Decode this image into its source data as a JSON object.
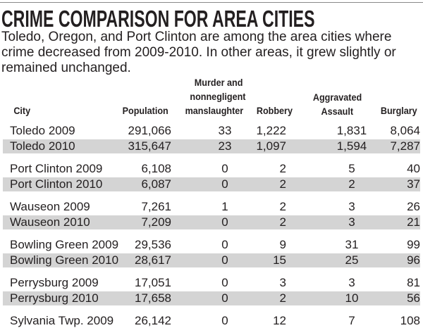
{
  "title": "CRIME COMPARISON FOR AREA CITIES",
  "intro": "Toledo, Oregon, and Port Clinton are among the area cities where crime decreased from 2009-2010. In other areas, it grew slightly or remained unchanged.",
  "headers": {
    "city": "City",
    "population": "Population",
    "murder_1": "Murder and",
    "murder_2": "nonnegligent",
    "murder_3": "manslaughter",
    "robbery": "Robbery",
    "assault_1": "Aggravated",
    "assault_2": "Assault",
    "burglary": "Burglary"
  },
  "colors": {
    "shade": "#d4d4d4",
    "text": "#231f20"
  },
  "rows": [
    {
      "city": "Toledo 2009",
      "population": "291,066",
      "murder": "33",
      "robbery": "1,222",
      "assault": "1,831",
      "burglary": "8,064"
    },
    {
      "city": "Toledo 2010",
      "population": "315,647",
      "murder": "23",
      "robbery": "1,097",
      "assault": "1,594",
      "burglary": "7,287"
    },
    {
      "city": "Port Clinton 2009",
      "population": "6,108",
      "murder": "0",
      "robbery": "2",
      "assault": "5",
      "burglary": "40"
    },
    {
      "city": "Port Clinton 2010",
      "population": "6,087",
      "murder": "0",
      "robbery": "2",
      "assault": "2",
      "burglary": "37"
    },
    {
      "city": "Wauseon 2009",
      "population": "7,261",
      "murder": "1",
      "robbery": "2",
      "assault": "3",
      "burglary": "26"
    },
    {
      "city": "Wauseon 2010",
      "population": "7,209",
      "murder": "0",
      "robbery": "2",
      "assault": "3",
      "burglary": "21"
    },
    {
      "city": "Bowling Green 2009",
      "population": "29,536",
      "murder": "0",
      "robbery": "9",
      "assault": "31",
      "burglary": "99"
    },
    {
      "city": "Bowling Green 2010",
      "population": "28,617",
      "murder": "0",
      "robbery": "15",
      "assault": "25",
      "burglary": "96"
    },
    {
      "city": "Perrysburg 2009",
      "population": "17,051",
      "murder": "0",
      "robbery": "3",
      "assault": "3",
      "burglary": "81"
    },
    {
      "city": "Perrysburg 2010",
      "population": "17,658",
      "murder": "0",
      "robbery": "2",
      "assault": "10",
      "burglary": "56"
    },
    {
      "city": "Sylvania Twp. 2009",
      "population": "26,142",
      "murder": "0",
      "robbery": "12",
      "assault": "7",
      "burglary": "108"
    }
  ]
}
